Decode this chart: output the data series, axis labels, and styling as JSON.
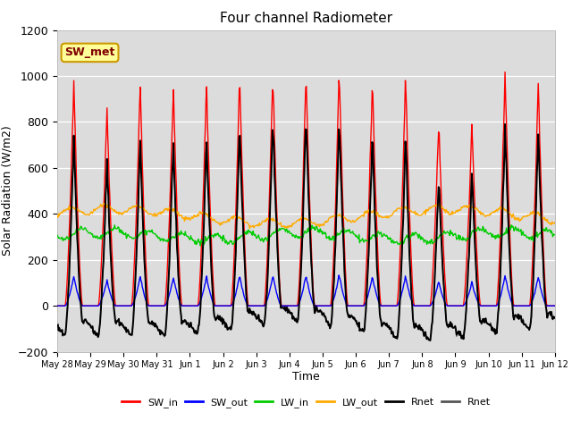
{
  "title": "Four channel Radiometer",
  "xlabel": "Time",
  "ylabel": "Solar Radiation (W/m2)",
  "ylim": [
    -200,
    1200
  ],
  "annotation_text": "SW_met",
  "background_color": "#ffffff",
  "plot_bg_color": "#dcdcdc",
  "grid_color": "#ffffff",
  "legend_entries": [
    "SW_in",
    "SW_out",
    "LW_in",
    "LW_out",
    "Rnet",
    "Rnet"
  ],
  "legend_colors": [
    "#ff0000",
    "#0000ff",
    "#00cc00",
    "#ffaa00",
    "#000000",
    "#555555"
  ],
  "num_days": 15,
  "tick_labels": [
    "May 28",
    "May 29",
    "May 30",
    "May 31",
    "Jun 1",
    "Jun 2",
    "Jun 3",
    "Jun 4",
    "Jun 5",
    "Jun 6",
    "Jun 7",
    "Jun 8",
    "Jun 9",
    "Jun 10",
    "Jun 11",
    "Jun 12"
  ],
  "sw_in_peaks": [
    980,
    870,
    970,
    955,
    975,
    1000,
    1010,
    1025,
    1025,
    995,
    1005,
    810,
    795,
    1020,
    970
  ],
  "sw_out_scale": 0.13,
  "lw_in_base": 305,
  "lw_out_base": 390,
  "rnet_night": -100
}
